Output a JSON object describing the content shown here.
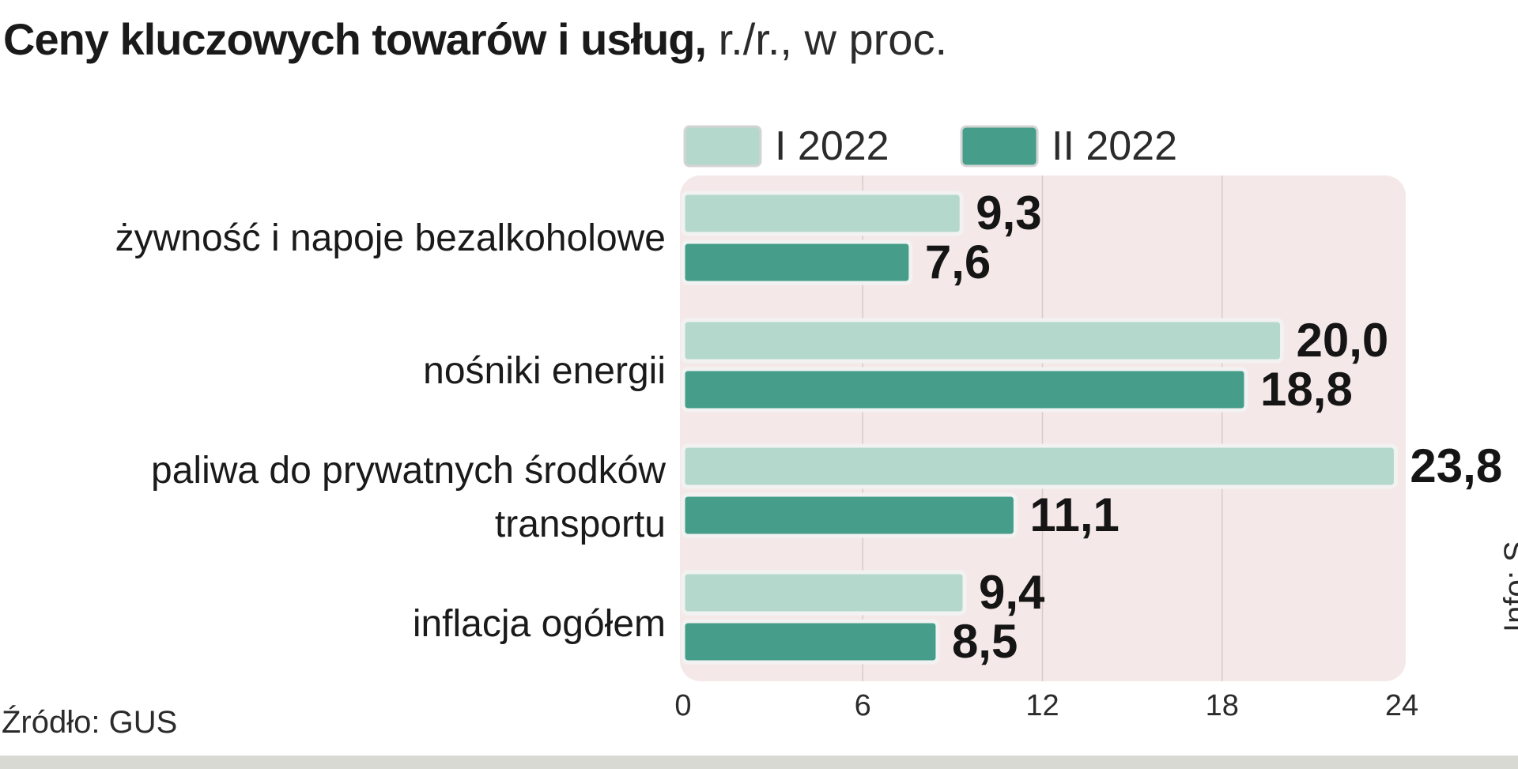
{
  "title": {
    "main": "Ceny kluczowych towarów i usług,",
    "sub": " r./r., w proc."
  },
  "source": "Źródło: GUS",
  "credit": "Info: S",
  "colors": {
    "series1": "#b5d8cc",
    "series2": "#469e8a",
    "plot_bg": "#f4e9e8",
    "grid": "#ddc9c8"
  },
  "chart_data": {
    "type": "bar",
    "orientation": "horizontal",
    "categories": [
      "żywność i napoje bezalkoholowe",
      "nośniki energii",
      "paliwa do prywatnych środków transportu",
      "inflacja ogółem"
    ],
    "series": [
      {
        "name": "I 2022",
        "values": [
          9.3,
          20.0,
          23.8,
          9.4
        ],
        "labels": [
          "9,3",
          "20,0",
          "23,8",
          "9,4"
        ]
      },
      {
        "name": "II 2022",
        "values": [
          7.6,
          18.8,
          11.1,
          8.5
        ],
        "labels": [
          "7,6",
          "18,8",
          "11,1",
          "8,5"
        ]
      }
    ],
    "xlim": [
      0,
      24
    ],
    "xticks": [
      0,
      6,
      12,
      18,
      24
    ],
    "grid": true,
    "legend_position": "top"
  }
}
